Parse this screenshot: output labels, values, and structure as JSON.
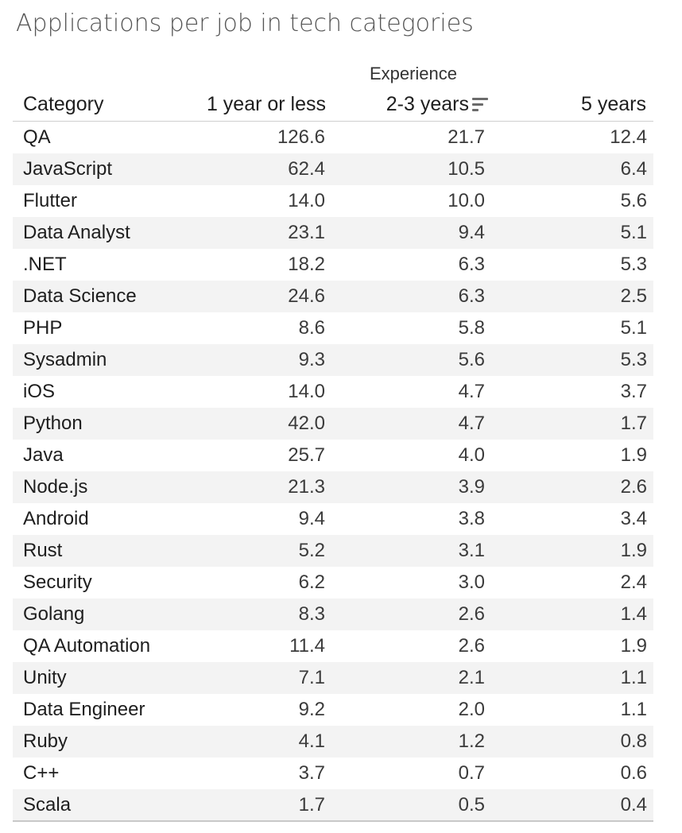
{
  "chart_data": {
    "type": "table",
    "title": "Applications per job in tech categories",
    "column_group": "Experience",
    "row_header": "Category",
    "columns": [
      "1 year or less",
      "2-3 years",
      "5 years"
    ],
    "sorted_column": "2-3 years",
    "sort_icon": "sort-descending-icon",
    "rows": [
      {
        "category": "QA",
        "values": [
          "126.6",
          "21.7",
          "12.4"
        ]
      },
      {
        "category": "JavaScript",
        "values": [
          "62.4",
          "10.5",
          "6.4"
        ]
      },
      {
        "category": "Flutter",
        "values": [
          "14.0",
          "10.0",
          "5.6"
        ]
      },
      {
        "category": "Data Analyst",
        "values": [
          "23.1",
          "9.4",
          "5.1"
        ]
      },
      {
        "category": ".NET",
        "values": [
          "18.2",
          "6.3",
          "5.3"
        ]
      },
      {
        "category": "Data Science",
        "values": [
          "24.6",
          "6.3",
          "2.5"
        ]
      },
      {
        "category": "PHP",
        "values": [
          "8.6",
          "5.8",
          "5.1"
        ]
      },
      {
        "category": "Sysadmin",
        "values": [
          "9.3",
          "5.6",
          "5.3"
        ]
      },
      {
        "category": "iOS",
        "values": [
          "14.0",
          "4.7",
          "3.7"
        ]
      },
      {
        "category": "Python",
        "values": [
          "42.0",
          "4.7",
          "1.7"
        ]
      },
      {
        "category": "Java",
        "values": [
          "25.7",
          "4.0",
          "1.9"
        ]
      },
      {
        "category": "Node.js",
        "values": [
          "21.3",
          "3.9",
          "2.6"
        ]
      },
      {
        "category": "Android",
        "values": [
          "9.4",
          "3.8",
          "3.4"
        ]
      },
      {
        "category": "Rust",
        "values": [
          "5.2",
          "3.1",
          "1.9"
        ]
      },
      {
        "category": "Security",
        "values": [
          "6.2",
          "3.0",
          "2.4"
        ]
      },
      {
        "category": "Golang",
        "values": [
          "8.3",
          "2.6",
          "1.4"
        ]
      },
      {
        "category": "QA Automation",
        "values": [
          "11.4",
          "2.6",
          "1.9"
        ]
      },
      {
        "category": "Unity",
        "values": [
          "7.1",
          "2.1",
          "1.1"
        ]
      },
      {
        "category": "Data Engineer",
        "values": [
          "9.2",
          "2.0",
          "1.1"
        ]
      },
      {
        "category": "Ruby",
        "values": [
          "4.1",
          "1.2",
          "0.8"
        ]
      },
      {
        "category": "C++",
        "values": [
          "3.7",
          "0.7",
          "0.6"
        ]
      },
      {
        "category": "Scala",
        "values": [
          "1.7",
          "0.5",
          "0.4"
        ]
      }
    ],
    "colors": {
      "alt_row": "#f3f3f3",
      "title": "#555555",
      "text": "#1e1e1e"
    }
  }
}
